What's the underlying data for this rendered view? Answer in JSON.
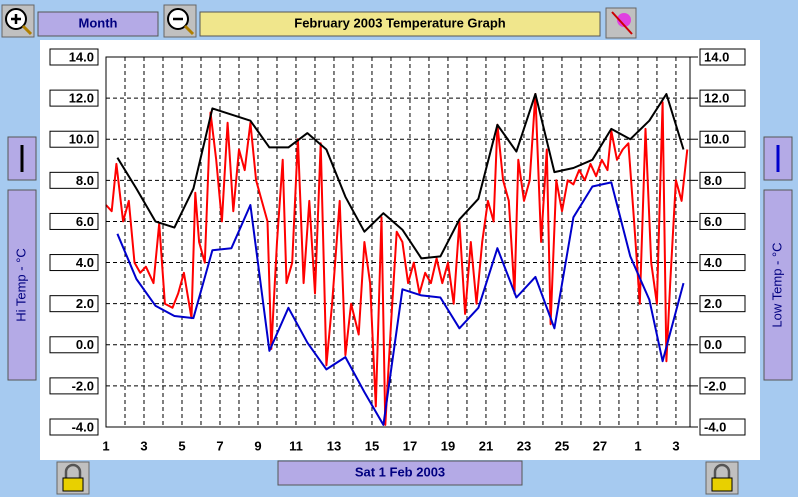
{
  "ui": {
    "period_button": "Month",
    "date_button": "Sat 1 Feb 2003"
  },
  "chart_data": {
    "type": "line",
    "title": "February 2003 Temperature Graph",
    "ylabel": "Hi Temp - °C",
    "y2label": "Low Temp - °C",
    "xlim": [
      1,
      31.74
    ],
    "xticks": [
      1,
      3,
      5,
      7,
      9,
      11,
      13,
      15,
      17,
      19,
      21,
      23,
      25,
      27,
      {
        "value": 29,
        "label": "1"
      },
      {
        "value": 31,
        "label": "3"
      }
    ],
    "xminorticks": [
      2,
      4,
      6,
      8,
      10,
      12,
      14,
      16,
      18,
      20,
      22,
      24,
      26,
      28,
      30
    ],
    "ylim": [
      -4,
      14
    ],
    "yticks": [
      {
        "value": -4,
        "label": "-4.0"
      },
      {
        "value": -2,
        "label": "-2.0"
      },
      {
        "value": 0,
        "label": "0.0"
      },
      {
        "value": 2,
        "label": "2.0"
      },
      {
        "value": 4,
        "label": "4.0"
      },
      {
        "value": 6,
        "label": "6.0"
      },
      {
        "value": 8,
        "label": "8.0"
      },
      {
        "value": 10,
        "label": "10.0"
      },
      {
        "value": 12,
        "label": "12.0"
      },
      {
        "value": 14,
        "label": "14.0"
      }
    ],
    "y2lim": [
      -4,
      14
    ],
    "y2ticks": [
      {
        "value": -4,
        "label": "-4.0"
      },
      {
        "value": -2,
        "label": "-2.0"
      },
      {
        "value": 0,
        "label": "0.0"
      },
      {
        "value": 2,
        "label": "2.0"
      },
      {
        "value": 4,
        "label": "4.0"
      },
      {
        "value": 6,
        "label": "6.0"
      },
      {
        "value": 8,
        "label": "8.0"
      },
      {
        "value": 10,
        "label": "10.0"
      },
      {
        "value": 12,
        "label": "12.0"
      },
      {
        "value": 14,
        "label": "14.0"
      }
    ],
    "grid": true,
    "series": [
      {
        "color": "#ff0000",
        "x": [
          1.0,
          1.3,
          1.55,
          1.9,
          2.2,
          2.5,
          2.8,
          3.1,
          3.5,
          3.8,
          4.1,
          4.5,
          4.8,
          5.1,
          5.5,
          5.7,
          5.9,
          6.2,
          6.5,
          6.8,
          7.1,
          7.4,
          7.7,
          8.0,
          8.3,
          8.6,
          8.9,
          9.2,
          9.5,
          9.7,
          10.0,
          10.3,
          10.5,
          10.8,
          11.1,
          11.4,
          11.7,
          12.0,
          12.3,
          12.6,
          12.9,
          13.3,
          13.6,
          13.9,
          14.3,
          14.6,
          14.9,
          15.2,
          15.5,
          15.7,
          16.0,
          16.3,
          16.6,
          16.9,
          17.2,
          17.5,
          17.8,
          18.1,
          18.4,
          18.7,
          19.0,
          19.3,
          19.6,
          19.9,
          20.2,
          20.5,
          20.8,
          21.1,
          21.4,
          21.6,
          21.9,
          22.2,
          22.5,
          22.7,
          23.0,
          23.3,
          23.6,
          23.9,
          24.2,
          24.4,
          24.7,
          25.0,
          25.3,
          25.6,
          25.9,
          26.2,
          26.5,
          26.8,
          27.1,
          27.4,
          27.6,
          27.9,
          28.2,
          28.5,
          28.8,
          29.1,
          29.4,
          29.7,
          30.0,
          30.3,
          30.5,
          30.7,
          31.0,
          31.3,
          31.6
        ],
        "values": [
          6.8,
          6.5,
          8.8,
          6.0,
          7.0,
          4.0,
          3.5,
          3.8,
          3.0,
          5.9,
          2.0,
          1.8,
          2.5,
          3.5,
          1.3,
          7.4,
          5.0,
          4.0,
          11.3,
          9.0,
          6.0,
          10.8,
          6.5,
          9.5,
          8.5,
          10.8,
          8.0,
          7.0,
          6.0,
          -0.2,
          5.0,
          9.0,
          3.0,
          4.0,
          10.0,
          3.0,
          7.0,
          2.5,
          9.8,
          -1.0,
          2.0,
          7.0,
          -0.5,
          2.0,
          0.5,
          5.0,
          3.0,
          -3.0,
          6.2,
          -3.9,
          1.0,
          5.5,
          5.0,
          3.0,
          4.0,
          2.5,
          3.5,
          3.0,
          4.2,
          3.0,
          4.0,
          2.0,
          6.0,
          1.5,
          5.0,
          2.0,
          5.0,
          7.0,
          6.0,
          10.7,
          8.0,
          7.0,
          2.5,
          9.0,
          7.0,
          8.0,
          12.2,
          5.0,
          9.5,
          1.0,
          8.0,
          6.5,
          8.0,
          7.8,
          8.5,
          8.0,
          8.8,
          8.2,
          9.0,
          8.5,
          10.4,
          9.0,
          9.5,
          9.8,
          6.0,
          2.0,
          10.5,
          4.0,
          2.0,
          11.8,
          -0.8,
          3.0,
          8.0,
          7.0,
          9.5
        ]
      },
      {
        "color": "#000000",
        "x": [
          1.6,
          2.6,
          3.6,
          4.6,
          5.6,
          6.6,
          7.6,
          8.6,
          9.6,
          10.6,
          11.6,
          12.6,
          13.6,
          14.6,
          15.6,
          16.6,
          17.6,
          18.6,
          19.6,
          20.6,
          21.6,
          22.6,
          23.6,
          24.6,
          25.6,
          26.6,
          27.6,
          28.6,
          29.6,
          30.5,
          31.4
        ],
        "values": [
          9.1,
          7.6,
          6.0,
          5.7,
          7.6,
          11.5,
          11.2,
          10.9,
          9.6,
          9.6,
          10.3,
          9.5,
          7.2,
          5.5,
          6.4,
          5.6,
          4.2,
          4.3,
          6.1,
          7.1,
          10.7,
          9.4,
          12.2,
          8.4,
          8.6,
          9.0,
          10.5,
          10.0,
          10.9,
          12.2,
          9.5
        ]
      },
      {
        "color": "#0000cc",
        "axis": "y2",
        "x": [
          1.6,
          2.6,
          3.6,
          4.6,
          5.6,
          6.6,
          7.6,
          8.6,
          9.6,
          10.6,
          11.6,
          12.6,
          13.6,
          14.6,
          15.6,
          16.6,
          17.6,
          18.6,
          19.6,
          20.6,
          21.6,
          22.6,
          23.6,
          24.6,
          25.6,
          26.6,
          27.6,
          28.6,
          29.6,
          30.3,
          31.4
        ],
        "values": [
          5.4,
          3.2,
          1.9,
          1.4,
          1.3,
          4.6,
          4.7,
          6.8,
          -0.3,
          1.8,
          0.1,
          -1.2,
          -0.6,
          -2.3,
          -3.9,
          2.7,
          2.4,
          2.3,
          0.8,
          1.8,
          4.7,
          2.3,
          3.3,
          0.8,
          6.2,
          7.7,
          7.9,
          4.3,
          2.2,
          -0.8,
          3.0
        ]
      }
    ]
  }
}
